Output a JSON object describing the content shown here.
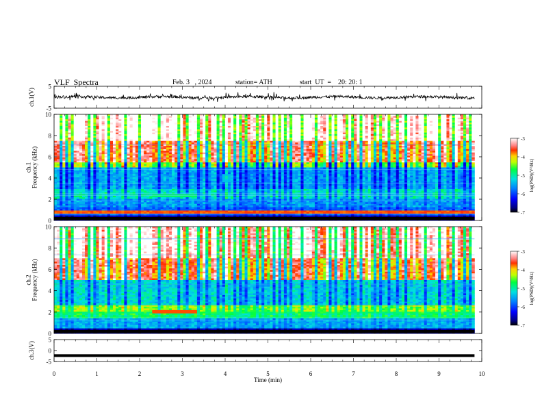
{
  "header": {
    "title": "VLF  Spectra",
    "date": "Feb. 3   , 2024",
    "station": "station= ATH",
    "start": "start  UT  =    20: 20: 1"
  },
  "chart_data": [
    {
      "type": "line",
      "ylabel": "ch.1(V)",
      "ylim": [
        -5,
        5
      ],
      "yticks": [
        "5",
        "-5"
      ],
      "xlim": [
        0,
        10
      ],
      "approx_baseline": 0,
      "end_time_min": 9.83
    },
    {
      "type": "heatmap",
      "ylabel": "ch.1\nFrequency  (kHz)",
      "ylim": [
        0,
        10
      ],
      "yticks": [
        "10",
        "8",
        "6",
        "4",
        "2",
        "0"
      ],
      "xlim": [
        0,
        10
      ],
      "colorbar": {
        "label": "log(PSD)(V²/Hz)",
        "ticks": [
          "-3",
          "-4",
          "-5",
          "-6",
          "-7"
        ],
        "range": [
          -7,
          -3
        ]
      },
      "features": [
        {
          "kind": "bright_band",
          "t_start": 2.27,
          "t_end": 3.35,
          "f_khz": 2.3,
          "level": -4.8
        },
        {
          "kind": "patch",
          "t_start": 3.9,
          "t_end": 4.2,
          "f_khz": 4.0,
          "level": -5.4
        },
        {
          "kind": "line",
          "f_khz": 0.8,
          "level": -3.6
        }
      ]
    },
    {
      "type": "heatmap",
      "ylabel": "ch.2\nFrequency  (kHz)",
      "ylim": [
        0,
        10
      ],
      "yticks": [
        "10",
        "8",
        "6",
        "4",
        "2",
        "0"
      ],
      "xlim": [
        0,
        10
      ],
      "colorbar": {
        "label": "log(PSD)(V²/Hz)",
        "ticks": [
          "-3",
          "-4",
          "-5",
          "-6",
          "-7"
        ],
        "range": [
          -7,
          -3
        ]
      },
      "features": [
        {
          "kind": "bright_band",
          "t_start": 2.27,
          "t_end": 3.35,
          "f_khz": 2.0,
          "level": -3.7
        },
        {
          "kind": "patch",
          "t_start": 3.9,
          "t_end": 4.2,
          "f_khz": 4.0,
          "level": -5.4
        },
        {
          "kind": "band",
          "f_khz": 2.0,
          "level": -4.9
        }
      ]
    },
    {
      "type": "line",
      "ylabel": "ch.3(V)",
      "ylim": [
        -5,
        5
      ],
      "yticks": [
        "5",
        "0",
        "-5"
      ],
      "xlim": [
        0,
        10
      ],
      "approx_value": -2.3,
      "end_time_min": 9.83
    }
  ],
  "xaxis": {
    "label": "Time  (min)",
    "ticks": [
      "0",
      "1",
      "2",
      "3",
      "4",
      "5",
      "6",
      "7",
      "8",
      "9",
      "10"
    ]
  }
}
